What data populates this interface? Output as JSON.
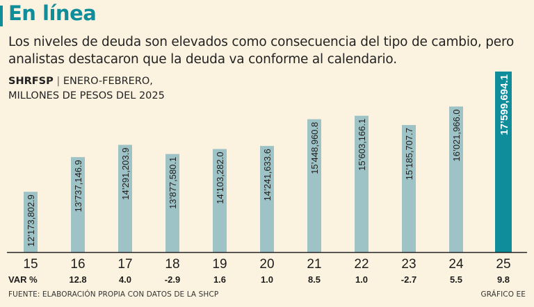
{
  "header": {
    "title": "En línea",
    "subtitle": "Los niveles de deuda son elevados como consecuencia del tipo de cambio, pero analistas destacaron que la deuda va conforme al calendario."
  },
  "chart_label": {
    "series_code": "SHRFSP",
    "separator": "|",
    "period": "ENERO-FEBRERO,",
    "units": "MILLONES DE PESOS DEL 2025"
  },
  "chart_data": {
    "type": "bar",
    "title": "SHRFSP | ENERO-FEBRERO, MILLONES DE PESOS DEL 2025",
    "categories": [
      "15",
      "16",
      "17",
      "18",
      "19",
      "20",
      "21",
      "22",
      "23",
      "24",
      "25"
    ],
    "values": [
      12173802.9,
      13737146.9,
      14291203.9,
      13877580.1,
      14103282.0,
      14241633.6,
      15448960.8,
      15603166.1,
      15185707.7,
      16021966.0,
      17599694.1
    ],
    "value_labels": [
      "12’173,802.9",
      "13’737,146.9",
      "14’291,203.9",
      "13’877,580.1",
      "14’103,282.0",
      "14’241,633.6",
      "15’448,960.8",
      "15’603,166.1",
      "15’185,707.7",
      "16’021,966.0",
      "17’599,694.1"
    ],
    "var_label": "VAR %",
    "var_pct": [
      "12.8",
      "4.0",
      "-2.9",
      "1.6",
      "1.0",
      "8.5",
      "1.0",
      "-2.7",
      "5.5",
      "9.8"
    ],
    "highlight_index": 10,
    "xlabel": "",
    "ylabel": "Millones de pesos del 2025",
    "ylim": [
      0,
      17599694.1
    ],
    "grid": false,
    "colors": {
      "bar": "#9dc3c7",
      "highlight": "#0f8d9b",
      "highlight_text": "#ffffff",
      "text": "#1c1c1c",
      "axis": "#222222"
    }
  },
  "footer": {
    "source": "FUENTE: ELABORACIÓN PROPIA CON DATOS DE LA SHCP",
    "credit": "GRÁFICO EE"
  }
}
